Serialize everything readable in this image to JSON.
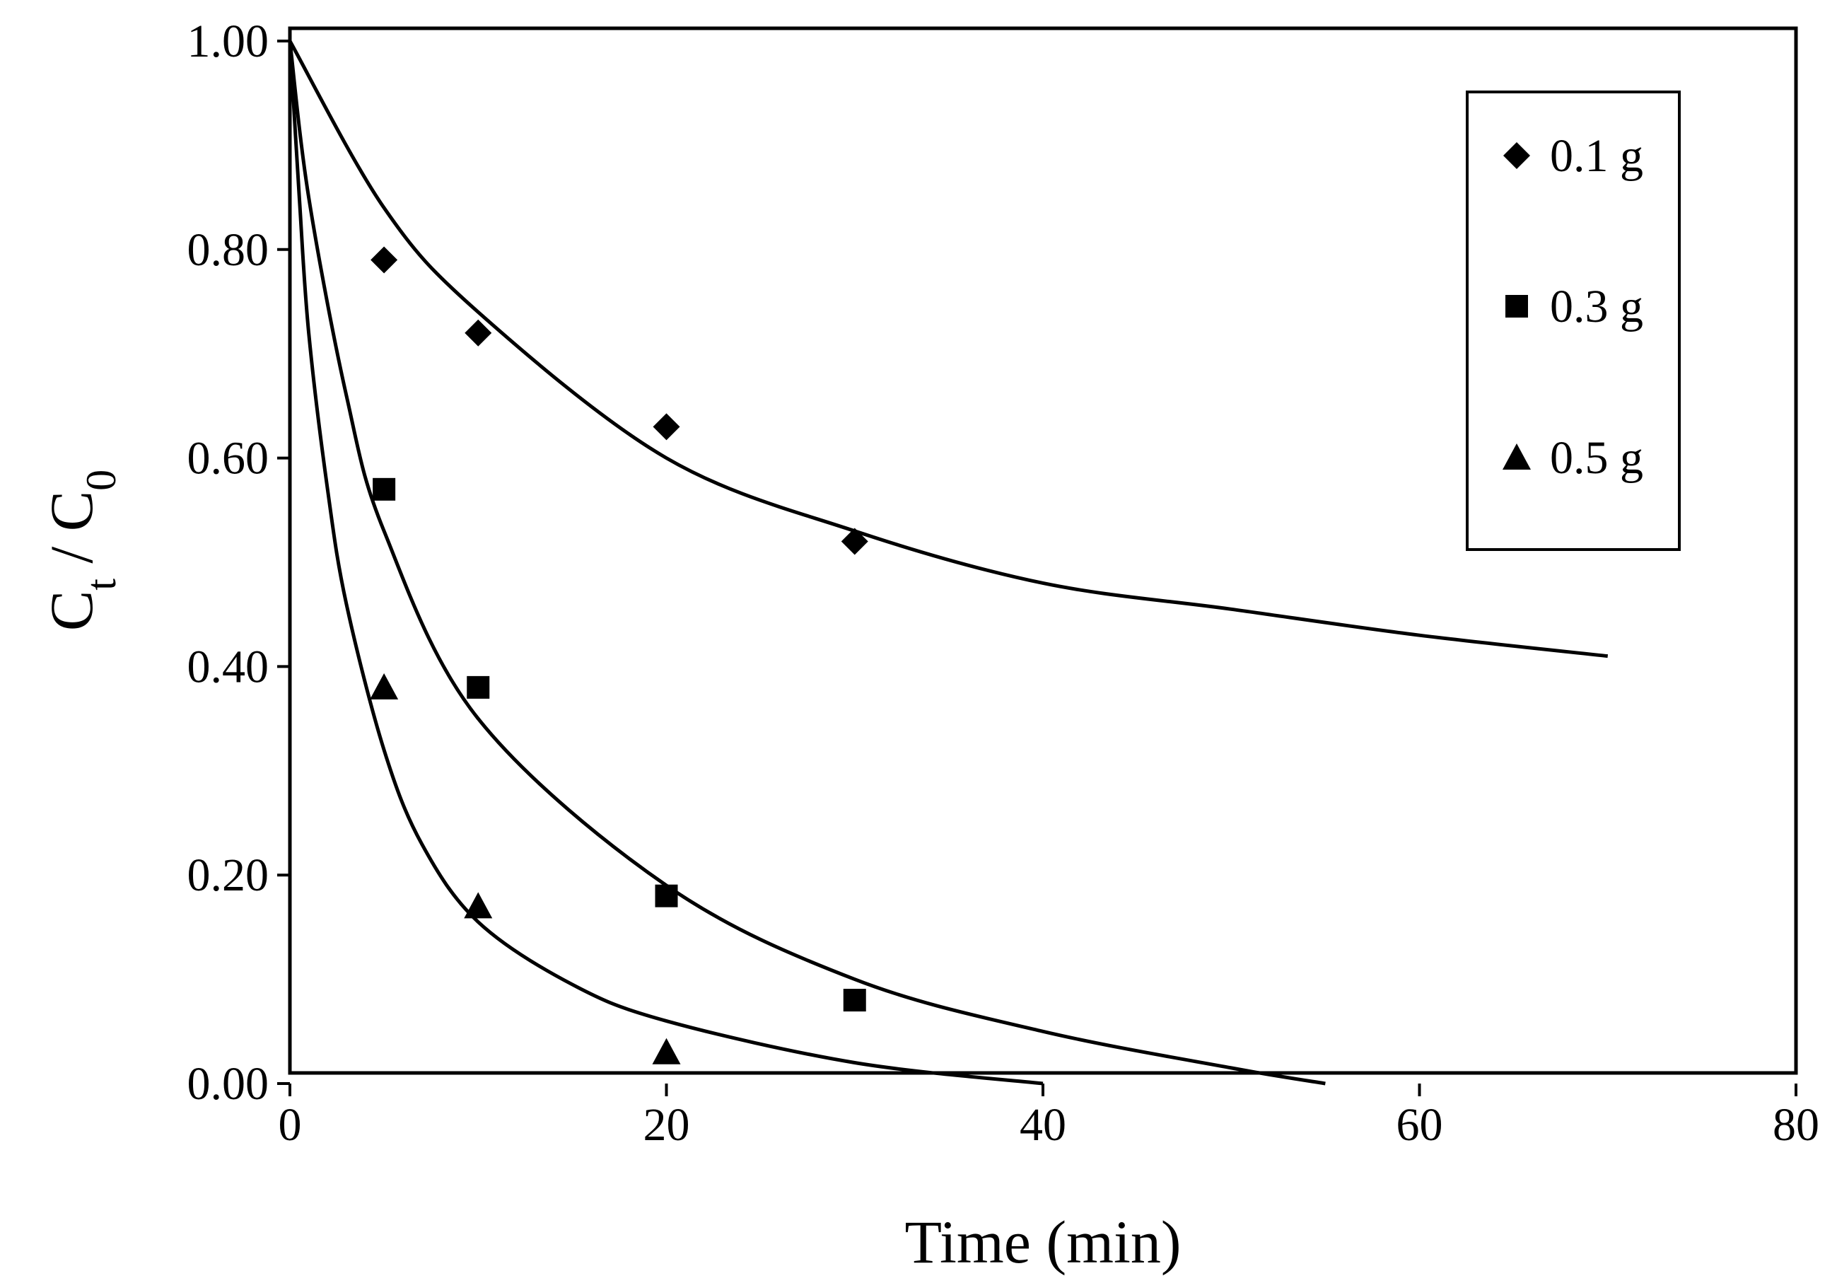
{
  "chart_data": {
    "type": "scatter",
    "title": "",
    "xlabel": "Time (min)",
    "ylabel": {
      "main": "C",
      "sub1": "t",
      "sep": " / C",
      "sub2": "0"
    },
    "xlim": [
      0,
      80
    ],
    "ylim": [
      0,
      1
    ],
    "x_ticks": [
      0,
      20,
      40,
      60,
      80
    ],
    "x_tick_labels": [
      "0",
      "20",
      "40",
      "60",
      "80"
    ],
    "y_ticks": [
      0,
      0.2,
      0.4,
      0.6,
      0.8,
      1.0
    ],
    "y_tick_labels": [
      "0.00",
      "0.20",
      "0.40",
      "0.60",
      "0.80",
      "1.00"
    ],
    "grid": false,
    "legend_position": "top-right",
    "series": [
      {
        "name": "0.1 g",
        "marker": "diamond",
        "x": [
          0,
          5,
          10,
          20,
          30
        ],
        "y": [
          1.0,
          0.79,
          0.72,
          0.63,
          0.52
        ],
        "fit_x": [
          0,
          5,
          10,
          20,
          30,
          40,
          50,
          60,
          70
        ],
        "fit_y": [
          1.0,
          0.84,
          0.74,
          0.6,
          0.53,
          0.48,
          0.455,
          0.43,
          0.41
        ]
      },
      {
        "name": "0.3 g",
        "marker": "square",
        "x": [
          0,
          5,
          10,
          20,
          30
        ],
        "y": [
          1.0,
          0.57,
          0.38,
          0.18,
          0.08
        ],
        "fit_x": [
          0,
          1,
          3,
          5,
          10,
          20,
          30,
          40,
          50,
          55
        ],
        "fit_y": [
          1.0,
          0.85,
          0.66,
          0.53,
          0.35,
          0.19,
          0.1,
          0.05,
          0.015,
          0.0
        ]
      },
      {
        "name": "0.5 g",
        "marker": "triangle",
        "x": [
          0,
          5,
          10,
          20
        ],
        "y": [
          1.0,
          0.38,
          0.17,
          0.03
        ],
        "fit_x": [
          0,
          0.5,
          1,
          2,
          3,
          5,
          7,
          10,
          15,
          20,
          30,
          40
        ],
        "fit_y": [
          1.0,
          0.85,
          0.72,
          0.57,
          0.46,
          0.32,
          0.23,
          0.155,
          0.095,
          0.06,
          0.02,
          0.0
        ]
      }
    ]
  }
}
